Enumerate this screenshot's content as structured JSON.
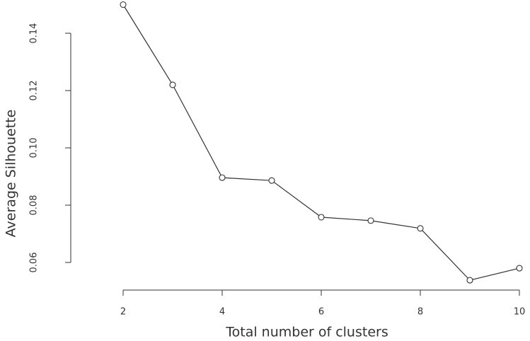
{
  "chart_data": {
    "type": "line",
    "x_label": "Total number of clusters",
    "y_label": "Average Silhouette",
    "x": [
      2,
      3,
      4,
      5,
      6,
      7,
      8,
      9,
      10
    ],
    "series": [
      {
        "color": "#333333",
        "values": [
          0.15,
          0.122,
          0.0896,
          0.0886,
          0.0758,
          0.0746,
          0.0719,
          0.0538,
          0.058
        ]
      }
    ],
    "xlim": [
      2,
      10
    ],
    "xticks": [
      2,
      4,
      6,
      8,
      10
    ],
    "ylim": [
      0.06,
      0.14
    ],
    "yticks": [
      0.06,
      0.08,
      {
        "value": 0.1,
        "label": "0.10"
      },
      0.12,
      0.14
    ],
    "markers": "open-circle"
  }
}
